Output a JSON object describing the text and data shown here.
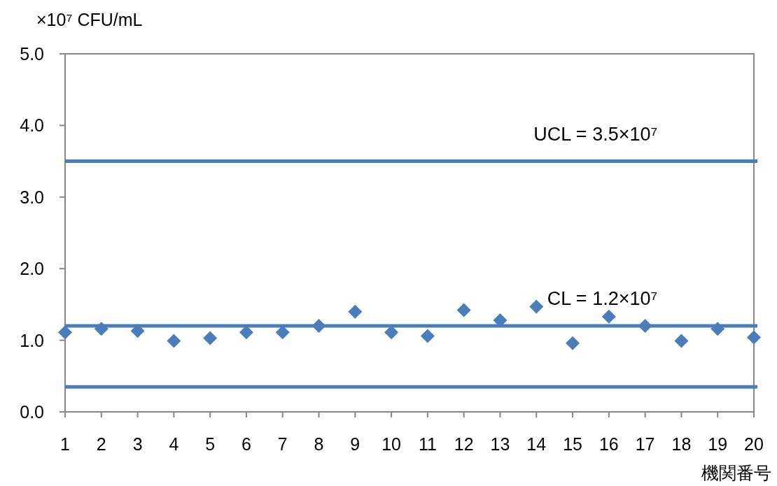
{
  "chart_data": {
    "type": "scatter",
    "ylabel": "×10⁷ CFU/mL",
    "xlabel": "機関番号",
    "x": [
      1,
      2,
      3,
      4,
      5,
      6,
      7,
      8,
      9,
      10,
      11,
      12,
      13,
      14,
      15,
      16,
      17,
      18,
      19,
      20
    ],
    "series": [
      {
        "color": "#4a7ebb",
        "values": [
          1.11,
          1.16,
          1.13,
          0.99,
          1.03,
          1.11,
          1.11,
          1.2,
          1.4,
          1.11,
          1.06,
          1.42,
          1.28,
          1.47,
          0.96,
          1.33,
          1.2,
          0.99,
          1.16,
          1.04
        ]
      }
    ],
    "marker": "diamond",
    "xlim": [
      1,
      20
    ],
    "xticks": [
      1,
      2,
      3,
      4,
      5,
      6,
      7,
      8,
      9,
      10,
      11,
      12,
      13,
      14,
      15,
      16,
      17,
      18,
      19,
      20
    ],
    "ylim": [
      0,
      5
    ],
    "yticks": [
      {
        "value": 0,
        "label": "0.0"
      },
      {
        "value": 1,
        "label": "1.0"
      },
      {
        "value": 2,
        "label": "2.0"
      },
      {
        "value": 3,
        "label": "3.0"
      },
      {
        "value": 4,
        "label": "4.0"
      },
      {
        "value": 5,
        "label": "5.0"
      }
    ],
    "ref_lines": [
      {
        "axis": "y",
        "value": 3.5,
        "label": "UCL = 3.5×10⁷",
        "color": "#4a7ebb"
      },
      {
        "axis": "y",
        "value": 1.2,
        "label": "CL = 1.2×10⁷",
        "color": "#4a7ebb"
      },
      {
        "axis": "y",
        "value": 0.35,
        "label": null,
        "color": "#4a7ebb"
      }
    ],
    "grid": false
  }
}
